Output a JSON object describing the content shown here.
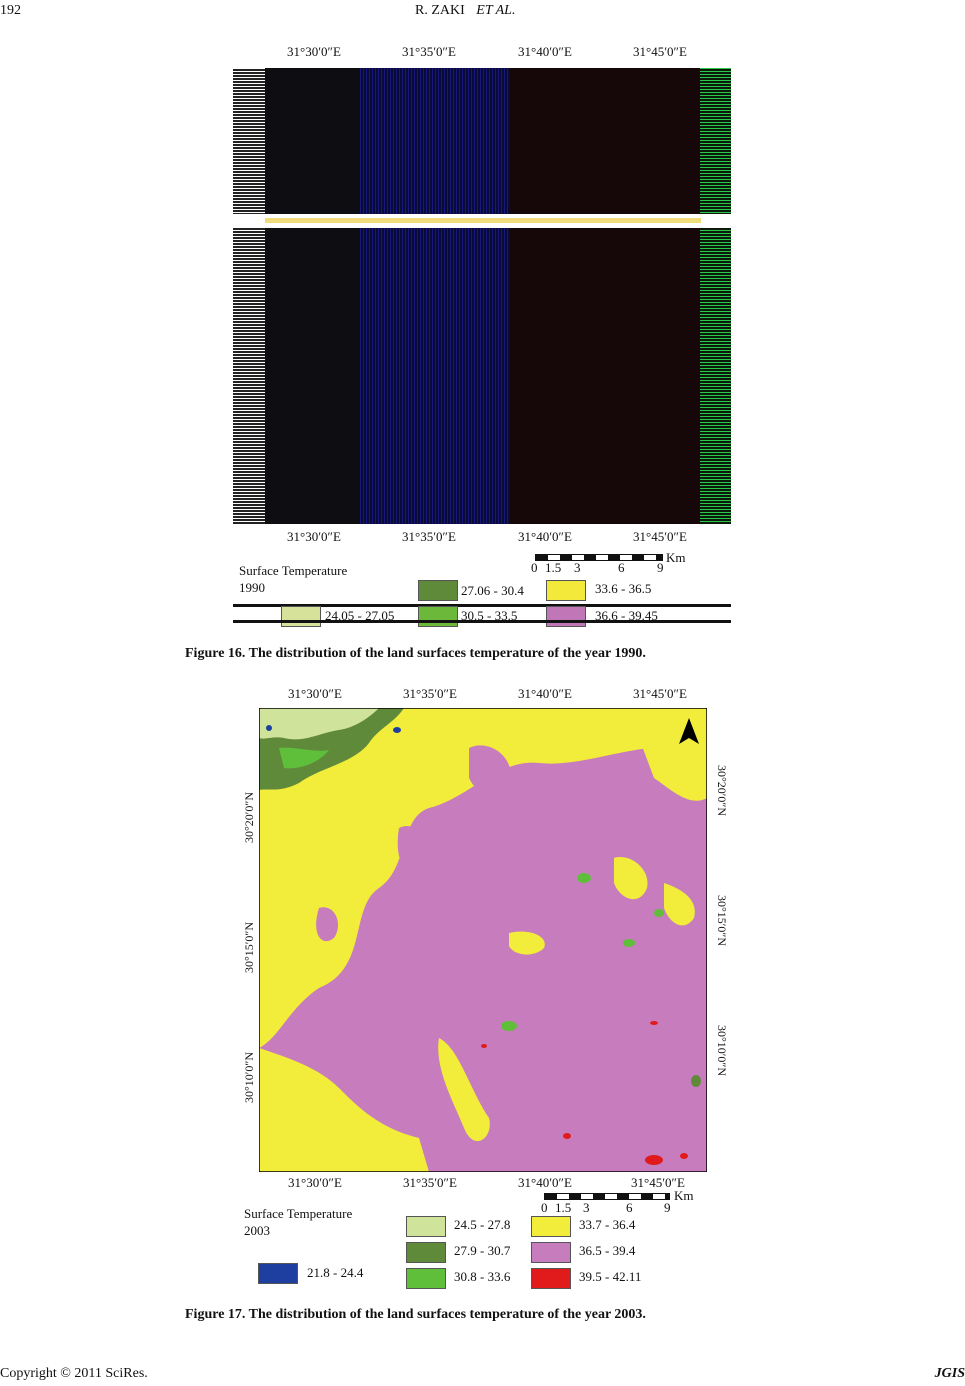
{
  "header": {
    "page_number": "192",
    "running_title": "R. ZAKI",
    "running_title_italic": "ET AL."
  },
  "figure16": {
    "caption": "Figure 16. The distribution of the land surfaces temperature of the year 1990.",
    "top_ticks": [
      "31°30′0″E",
      "31°35′0″E",
      "31°40′0″E",
      "31°45′0″E"
    ],
    "bottom_ticks": [
      "31°30′0″E",
      "31°35′0″E",
      "31°40′0″E",
      "31°45′0″E"
    ],
    "scale": {
      "labels": [
        "0",
        "1.5",
        "3",
        "6",
        "9"
      ],
      "unit": "Km"
    },
    "legend_title": "Surface Temperature",
    "legend_year": "1990",
    "legend": [
      {
        "range": "24.05 - 27.05",
        "color": "#d6e29a"
      },
      {
        "range": "27.06 - 30.4",
        "color": "#5f8a3a"
      },
      {
        "range": "30.5 - 33.5",
        "color": "#6bb83a"
      },
      {
        "range": "33.6 - 36.5",
        "color": "#f2e93a"
      },
      {
        "range": "36.6 - 39.45",
        "color": "#c176b8"
      }
    ]
  },
  "figure17": {
    "caption": "Figure 17. The distribution of the land surfaces temperature of the year 2003.",
    "top_ticks": [
      "31°30′0″E",
      "31°35′0″E",
      "31°40′0″E",
      "31°45′0″E"
    ],
    "bottom_ticks": [
      "31°30′0″E",
      "31°35′0″E",
      "31°40′0″E",
      "31°45′0″E"
    ],
    "left_ticks": [
      "30°20′0″N",
      "30°15′0″N",
      "30°10′0″N"
    ],
    "right_ticks": [
      "30°20′0″N",
      "30°15′0″N",
      "30°10′0″N"
    ],
    "scale": {
      "labels": [
        "0",
        "1.5",
        "3",
        "6",
        "9"
      ],
      "unit": "Km"
    },
    "legend_title": "Surface Temperature",
    "legend_year": "2003",
    "legend": [
      {
        "range": "21.8 - 24.4",
        "color": "#1f3fa0"
      },
      {
        "range": "24.5 - 27.8",
        "color": "#cfe39a"
      },
      {
        "range": "27.9 - 30.7",
        "color": "#5f8a3a"
      },
      {
        "range": "30.8 - 33.6",
        "color": "#5fbf3a"
      },
      {
        "range": "33.7 - 36.4",
        "color": "#f2ec3a"
      },
      {
        "range": "36.5 - 39.4",
        "color": "#c67cbd"
      },
      {
        "range": "39.5 - 42.11",
        "color": "#e11b1b"
      }
    ]
  },
  "footer": {
    "copyright": "Copyright © 2011 SciRes.",
    "journal": "JGIS"
  }
}
